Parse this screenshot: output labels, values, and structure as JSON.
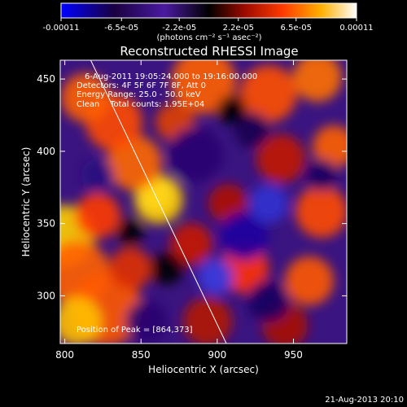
{
  "chart_data": {
    "type": "heatmap",
    "title": "Reconstructed RHESSI Image",
    "xlabel": "Heliocentric X (arcsec)",
    "ylabel": "Heliocentric Y (arcsec)",
    "xlim": [
      797,
      985
    ],
    "ylim": [
      267,
      463
    ],
    "x_ticks": [
      800,
      850,
      900,
      950
    ],
    "y_ticks": [
      300,
      350,
      400,
      450
    ],
    "colorbar": {
      "range": [
        -0.00011,
        0.00011
      ],
      "tick_values": [
        -0.00011,
        -6.5e-05,
        -2.2e-05,
        2.2e-05,
        6.5e-05,
        0.00011
      ],
      "tick_labels": [
        "-0.00011",
        "-6.5e-05",
        "-2.2e-05",
        "2.2e-05",
        "6.5e-05",
        "0.00011"
      ],
      "unit_label": "(photons cm⁻² s⁻¹ asec⁻²)",
      "colors": [
        "#0000ff",
        "#2a0060",
        "#5a2ab0",
        "#b01000",
        "#ff5a00",
        "#ffd000",
        "#ffffff"
      ]
    },
    "annotations": {
      "time": "6-Aug-2011 19:05:24.000 to 19:16:00.000",
      "detectors": "Detectors: 4F 5F 6F 7F 8F, Att 0",
      "energy": "Energy Range: 25.0 - 50.0 keV",
      "method": "Clean    Total counts: 1.95E+04",
      "peak": "Position of Peak = [864,373]"
    },
    "limb_line": [
      [
        817,
        463
      ],
      [
        906,
        267
      ]
    ],
    "peak_position": [
      864,
      373
    ],
    "footer_date": "21-Aug-2013 20:10"
  }
}
